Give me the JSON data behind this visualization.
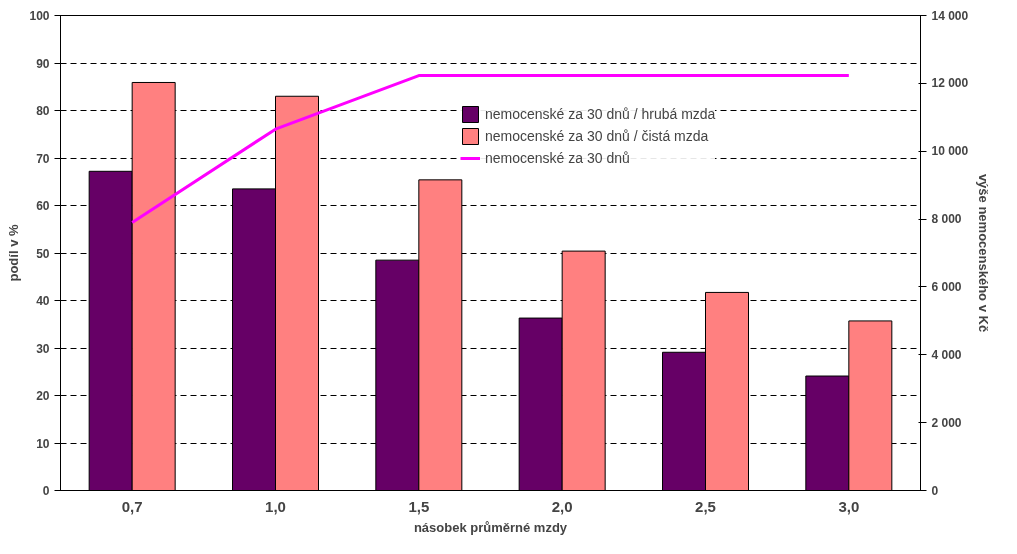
{
  "chart_data": {
    "type": "bar",
    "xlabel": "násobek průměrné mzdy",
    "ylabel": "podíl v %",
    "y2label": "výše nemocenského v Kč",
    "categories": [
      "0,7",
      "1,0",
      "1,5",
      "2,0",
      "2,5",
      "3,0"
    ],
    "series": [
      {
        "name": "nemocenské za 30 dnů / hrubá mzda",
        "color": "#660066",
        "values": [
          67.2,
          63.5,
          48.5,
          36.3,
          29.1,
          24.1
        ]
      },
      {
        "name": "nemocenské za 30 dnů / čistá mzda",
        "color": "#ff8080",
        "values": [
          85.9,
          83.0,
          65.4,
          50.4,
          41.7,
          35.7
        ]
      },
      {
        "name": "nemocenské za 30 dnů",
        "type": "line",
        "axis": "y2",
        "color": "#ff00ff",
        "values": [
          7900,
          10650,
          12230,
          12230,
          12230,
          12230
        ]
      }
    ],
    "ylim": [
      0,
      100
    ],
    "yticks": [
      0,
      10,
      20,
      30,
      40,
      50,
      60,
      70,
      80,
      90,
      100
    ],
    "y2lim": [
      0,
      14000
    ],
    "y2ticks": [
      {
        "value": 0,
        "label": "0"
      },
      {
        "value": 2000,
        "label": "2 000"
      },
      {
        "value": 4000,
        "label": "4 000"
      },
      {
        "value": 6000,
        "label": "6 000"
      },
      {
        "value": 8000,
        "label": "8 000"
      },
      {
        "value": 10000,
        "label": "10 000"
      },
      {
        "value": 12000,
        "label": "12 000"
      },
      {
        "value": 14000,
        "label": "14 000"
      }
    ],
    "grid": "y",
    "legend": "top right",
    "marker": "none",
    "line_style": "solid"
  }
}
